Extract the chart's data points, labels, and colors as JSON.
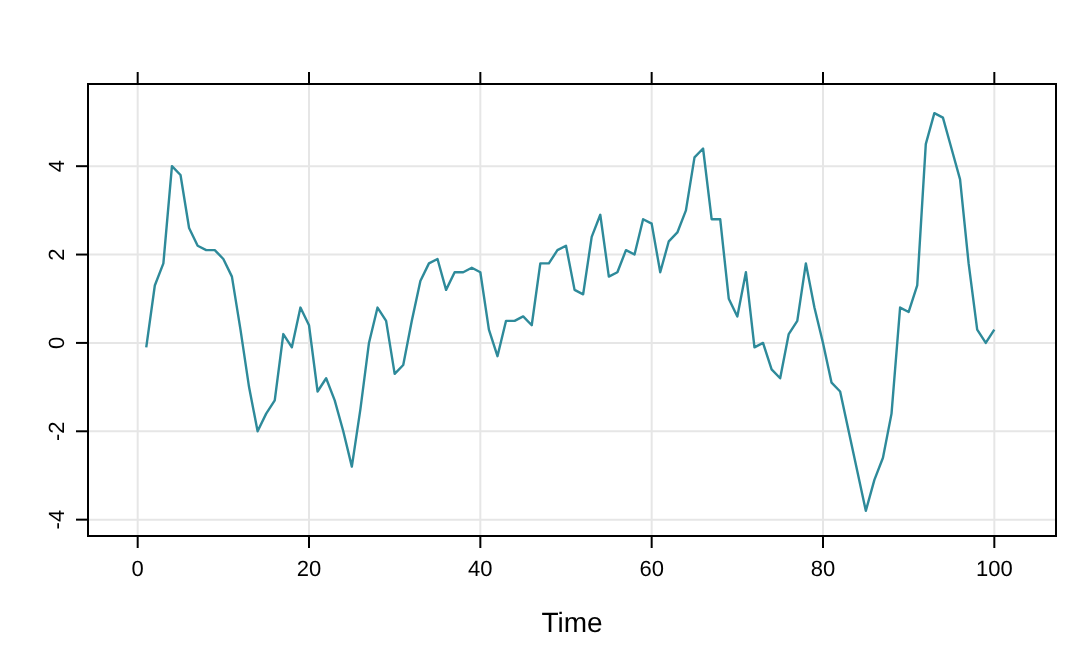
{
  "chart_data": {
    "type": "line",
    "xlabel": "Time",
    "x": [
      1,
      2,
      3,
      4,
      5,
      6,
      7,
      8,
      9,
      10,
      11,
      12,
      13,
      14,
      15,
      16,
      17,
      18,
      19,
      20,
      21,
      22,
      23,
      24,
      25,
      26,
      27,
      28,
      29,
      30,
      31,
      32,
      33,
      34,
      35,
      36,
      37,
      38,
      39,
      40,
      41,
      42,
      43,
      44,
      45,
      46,
      47,
      48,
      49,
      50,
      51,
      52,
      53,
      54,
      55,
      56,
      57,
      58,
      59,
      60,
      61,
      62,
      63,
      64,
      65,
      66,
      67,
      68,
      69,
      70,
      71,
      72,
      73,
      74,
      75,
      76,
      77,
      78,
      79,
      80,
      81,
      82,
      83,
      84,
      85,
      86,
      87,
      88,
      89,
      90,
      91,
      92,
      93,
      94,
      95,
      96,
      97,
      98,
      99,
      100
    ],
    "series": [
      {
        "color": "#2e8a9a",
        "values": [
          -0.1,
          1.3,
          1.8,
          4.0,
          3.8,
          2.6,
          2.2,
          2.1,
          2.1,
          1.9,
          1.5,
          0.3,
          -1.0,
          -2.0,
          -1.6,
          -1.3,
          0.2,
          -0.1,
          0.8,
          0.4,
          -1.1,
          -0.8,
          -1.3,
          -2.0,
          -2.8,
          -1.5,
          0.0,
          0.8,
          0.5,
          -0.7,
          -0.5,
          0.5,
          1.4,
          1.8,
          1.9,
          1.2,
          1.6,
          1.6,
          1.7,
          1.6,
          0.3,
          -0.3,
          0.5,
          0.5,
          0.6,
          0.4,
          1.8,
          1.8,
          2.1,
          2.2,
          1.2,
          1.1,
          2.4,
          2.9,
          1.5,
          1.6,
          2.1,
          2.0,
          2.8,
          2.7,
          1.6,
          2.3,
          2.5,
          3.0,
          4.2,
          4.4,
          2.8,
          2.8,
          1.0,
          0.6,
          1.6,
          -0.1,
          0.0,
          -0.6,
          -0.8,
          0.2,
          0.5,
          1.8,
          0.8,
          0.0,
          -0.9,
          -1.1,
          -2.0,
          -2.9,
          -3.8,
          -3.1,
          -2.6,
          -1.6,
          0.8,
          0.7,
          1.3,
          4.5,
          5.2,
          5.1,
          4.4,
          3.7,
          1.8,
          0.3,
          0.0,
          0.3
        ]
      }
    ],
    "xlim": [
      -5.8,
      107.2
    ],
    "ylim": [
      -4.37,
      5.86
    ],
    "xticks": [
      0,
      20,
      40,
      60,
      80,
      100
    ],
    "yticks": [
      -4,
      -2,
      0,
      2,
      4
    ],
    "grid": true
  }
}
